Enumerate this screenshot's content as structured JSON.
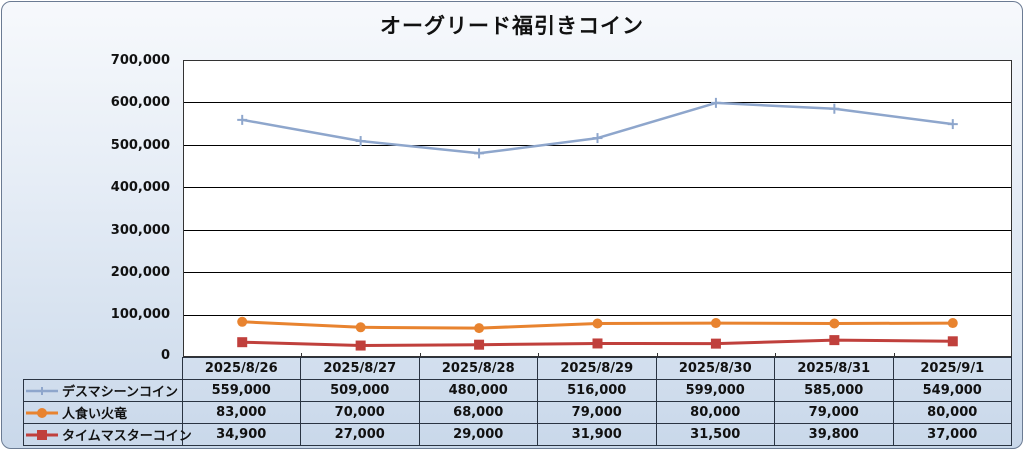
{
  "chart_data": {
    "type": "line",
    "title": "オーグリード福引きコイン",
    "categories": [
      "2025/8/26",
      "2025/8/27",
      "2025/8/28",
      "2025/8/29",
      "2025/8/30",
      "2025/8/31",
      "2025/9/1"
    ],
    "ylim": [
      0,
      700000
    ],
    "yticks": [
      "700,000",
      "600,000",
      "500,000",
      "400,000",
      "300,000",
      "200,000",
      "100,000",
      "0"
    ],
    "grid": true,
    "series": [
      {
        "name": "デスマシーンコイン",
        "values": [
          559000,
          509000,
          480000,
          516000,
          599000,
          585000,
          549000
        ],
        "labels": [
          "559,000",
          "509,000",
          "480,000",
          "516,000",
          "599,000",
          "585,000",
          "549,000"
        ],
        "color": "#8ea6cc",
        "marker": "plus"
      },
      {
        "name": "人食い火竜",
        "values": [
          83000,
          70000,
          68000,
          79000,
          80000,
          79000,
          80000
        ],
        "labels": [
          "83,000",
          "70,000",
          "68,000",
          "79,000",
          "80,000",
          "79,000",
          "80,000"
        ],
        "color": "#e8832f",
        "marker": "circle"
      },
      {
        "name": "タイムマスターコイン",
        "values": [
          34900,
          27000,
          29000,
          31900,
          31500,
          39800,
          37000
        ],
        "labels": [
          "34,900",
          "27,000",
          "29,000",
          "31,900",
          "31,500",
          "39,800",
          "37,000"
        ],
        "color": "#c0403c",
        "marker": "square"
      }
    ]
  }
}
